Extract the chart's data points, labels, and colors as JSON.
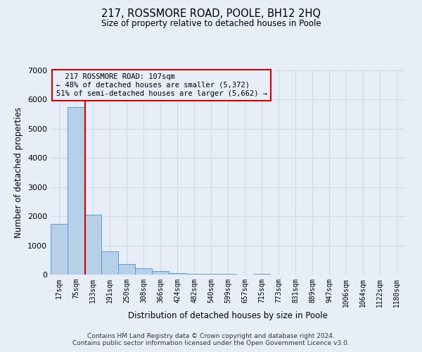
{
  "title": "217, ROSSMORE ROAD, POOLE, BH12 2HQ",
  "subtitle": "Size of property relative to detached houses in Poole",
  "xlabel": "Distribution of detached houses by size in Poole",
  "ylabel": "Number of detached properties",
  "annotation_line1": "  217 ROSSMORE ROAD: 107sqm  ",
  "annotation_line2": "← 48% of detached houses are smaller (5,372)",
  "annotation_line3": "51% of semi-detached houses are larger (5,662) →",
  "bar_labels": [
    "17sqm",
    "75sqm",
    "133sqm",
    "191sqm",
    "250sqm",
    "308sqm",
    "366sqm",
    "424sqm",
    "482sqm",
    "540sqm",
    "599sqm",
    "657sqm",
    "715sqm",
    "773sqm",
    "831sqm",
    "889sqm",
    "947sqm",
    "1006sqm",
    "1064sqm",
    "1122sqm",
    "1180sqm"
  ],
  "bar_values": [
    1750,
    5750,
    2050,
    800,
    360,
    220,
    110,
    60,
    30,
    25,
    18,
    0,
    15,
    0,
    0,
    0,
    0,
    0,
    0,
    0,
    0
  ],
  "bar_color": "#b8cfe8",
  "bar_edge_color": "#5b9bd5",
  "vline_color": "#cc0000",
  "vline_x": 1.55,
  "ylim": [
    0,
    7000
  ],
  "yticks": [
    0,
    1000,
    2000,
    3000,
    4000,
    5000,
    6000,
    7000
  ],
  "grid_color": "#d0d8e8",
  "background_color": "#e8eef8",
  "annotation_box_edge_color": "#cc0000",
  "footer_line1": "Contains HM Land Registry data © Crown copyright and database right 2024.",
  "footer_line2": "Contains public sector information licensed under the Open Government Licence v3.0."
}
